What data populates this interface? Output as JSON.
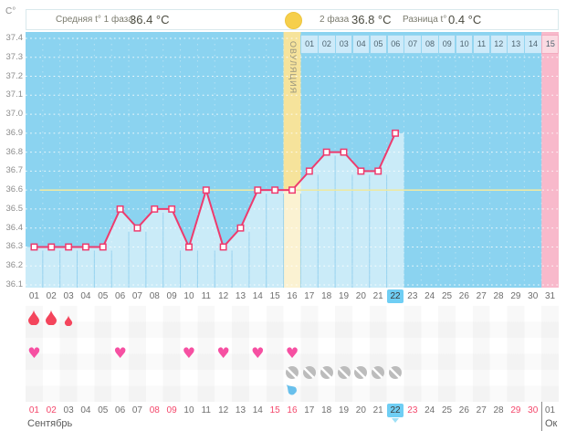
{
  "header": {
    "avg_phase1_label": "Средняя t° 1 фаза",
    "avg_phase1_value": "36.4 °C",
    "phase2_label": "2 фаза",
    "phase2_value": "36.8 °C",
    "diff_label": "Разница t°",
    "diff_value": "0.4 °C"
  },
  "axis": {
    "unit_label": "C°",
    "y_ticks": [
      "37.4",
      "37.3",
      "37.2",
      "37.1",
      "37.0",
      "36.9",
      "36.8",
      "36.7",
      "36.6",
      "36.5",
      "36.4",
      "36.3",
      "36.2",
      "36.1"
    ],
    "days": [
      "01",
      "02",
      "03",
      "04",
      "05",
      "06",
      "07",
      "08",
      "09",
      "10",
      "11",
      "12",
      "13",
      "14",
      "15",
      "16",
      "17",
      "18",
      "19",
      "20",
      "21",
      "22",
      "23",
      "24",
      "25",
      "26",
      "27",
      "28",
      "29",
      "30",
      "31"
    ]
  },
  "chart_data": {
    "type": "line",
    "title": "",
    "unit": "°C",
    "x_days": [
      1,
      2,
      3,
      4,
      5,
      6,
      7,
      8,
      9,
      10,
      11,
      12,
      13,
      14,
      15,
      16,
      17,
      18,
      19,
      20,
      21,
      22
    ],
    "values": [
      36.3,
      36.3,
      36.3,
      36.3,
      36.3,
      36.5,
      36.4,
      36.5,
      36.5,
      36.3,
      36.6,
      36.3,
      36.4,
      36.6,
      36.6,
      36.6,
      36.7,
      36.8,
      36.8,
      36.7,
      36.7,
      36.9
    ],
    "ylim": [
      36.1,
      37.4
    ],
    "coverline": 36.6,
    "ovulation_day": 16,
    "ovulation_label": "ОВУЛЯЦИЯ",
    "predicted_period_day": 31,
    "dpo_labels": [
      "01",
      "02",
      "03",
      "04",
      "05",
      "06",
      "07",
      "08",
      "09",
      "10",
      "11",
      "12",
      "13",
      "14",
      "15"
    ],
    "grid": "dotted-white",
    "legend": "none"
  },
  "markers": {
    "menstruation": [
      {
        "day": 1,
        "intensity": "heavy"
      },
      {
        "day": 2,
        "intensity": "heavy"
      },
      {
        "day": 3,
        "intensity": "light"
      }
    ],
    "intercourse_days": [
      1,
      6,
      10,
      12,
      14,
      16
    ],
    "pill_days": [
      16,
      17,
      18,
      19,
      20,
      21,
      22
    ],
    "discharge_days": [
      16
    ]
  },
  "dates": {
    "row": [
      "01",
      "02",
      "03",
      "04",
      "05",
      "06",
      "07",
      "08",
      "09",
      "10",
      "11",
      "12",
      "13",
      "14",
      "15",
      "16",
      "17",
      "18",
      "19",
      "20",
      "21",
      "22",
      "23",
      "24",
      "25",
      "26",
      "27",
      "28",
      "29",
      "30",
      "01"
    ],
    "weekend_days": [
      1,
      2,
      8,
      9,
      15,
      16,
      22,
      23,
      29,
      30
    ],
    "selected_day": 22,
    "month_current": "Сентябрь",
    "month_next": "Ок"
  },
  "colors": {
    "chart_bg": "#8bd3f0",
    "area_fill": "rgba(255,255,255,0.55)",
    "line": "#ee3b6e",
    "coverline": "#ece9a5",
    "ovulation_band": "#f6e39b",
    "period_prediction": "#f8b9cb",
    "selected_day": "#6fcef4",
    "weekend_text": "#f4476b",
    "heart": "#f650a2",
    "blood": "#f4455c",
    "pill": "#bcbcbc",
    "discharge": "#69c0ec"
  }
}
